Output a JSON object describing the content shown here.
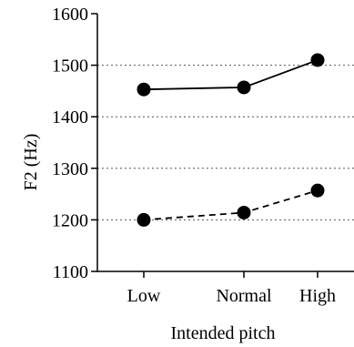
{
  "chart_data": {
    "type": "line",
    "title": "",
    "xlabel": "Intended pitch",
    "ylabel": "F2 (Hz)",
    "categories": [
      "Low",
      "Normal",
      "High"
    ],
    "ylim": [
      1100,
      1600
    ],
    "yticks": [
      1100,
      1200,
      1300,
      1400,
      1500,
      1600
    ],
    "ytick_labels": [
      "1100",
      "1200",
      "1300",
      "1400",
      "1500",
      "1600"
    ],
    "grid": {
      "horizontal_dotted_at": [
        1200,
        1300,
        1400,
        1500
      ]
    },
    "series": [
      {
        "line_style": "solid",
        "marker": "filled-circle",
        "values": [
          1453,
          1457,
          1510
        ]
      },
      {
        "line_style": "dashed",
        "marker": "filled-circle",
        "values": [
          1200,
          1214,
          1257
        ]
      }
    ],
    "colors": {
      "line": "#000000",
      "marker": "#000000",
      "grid": "#555555"
    }
  }
}
